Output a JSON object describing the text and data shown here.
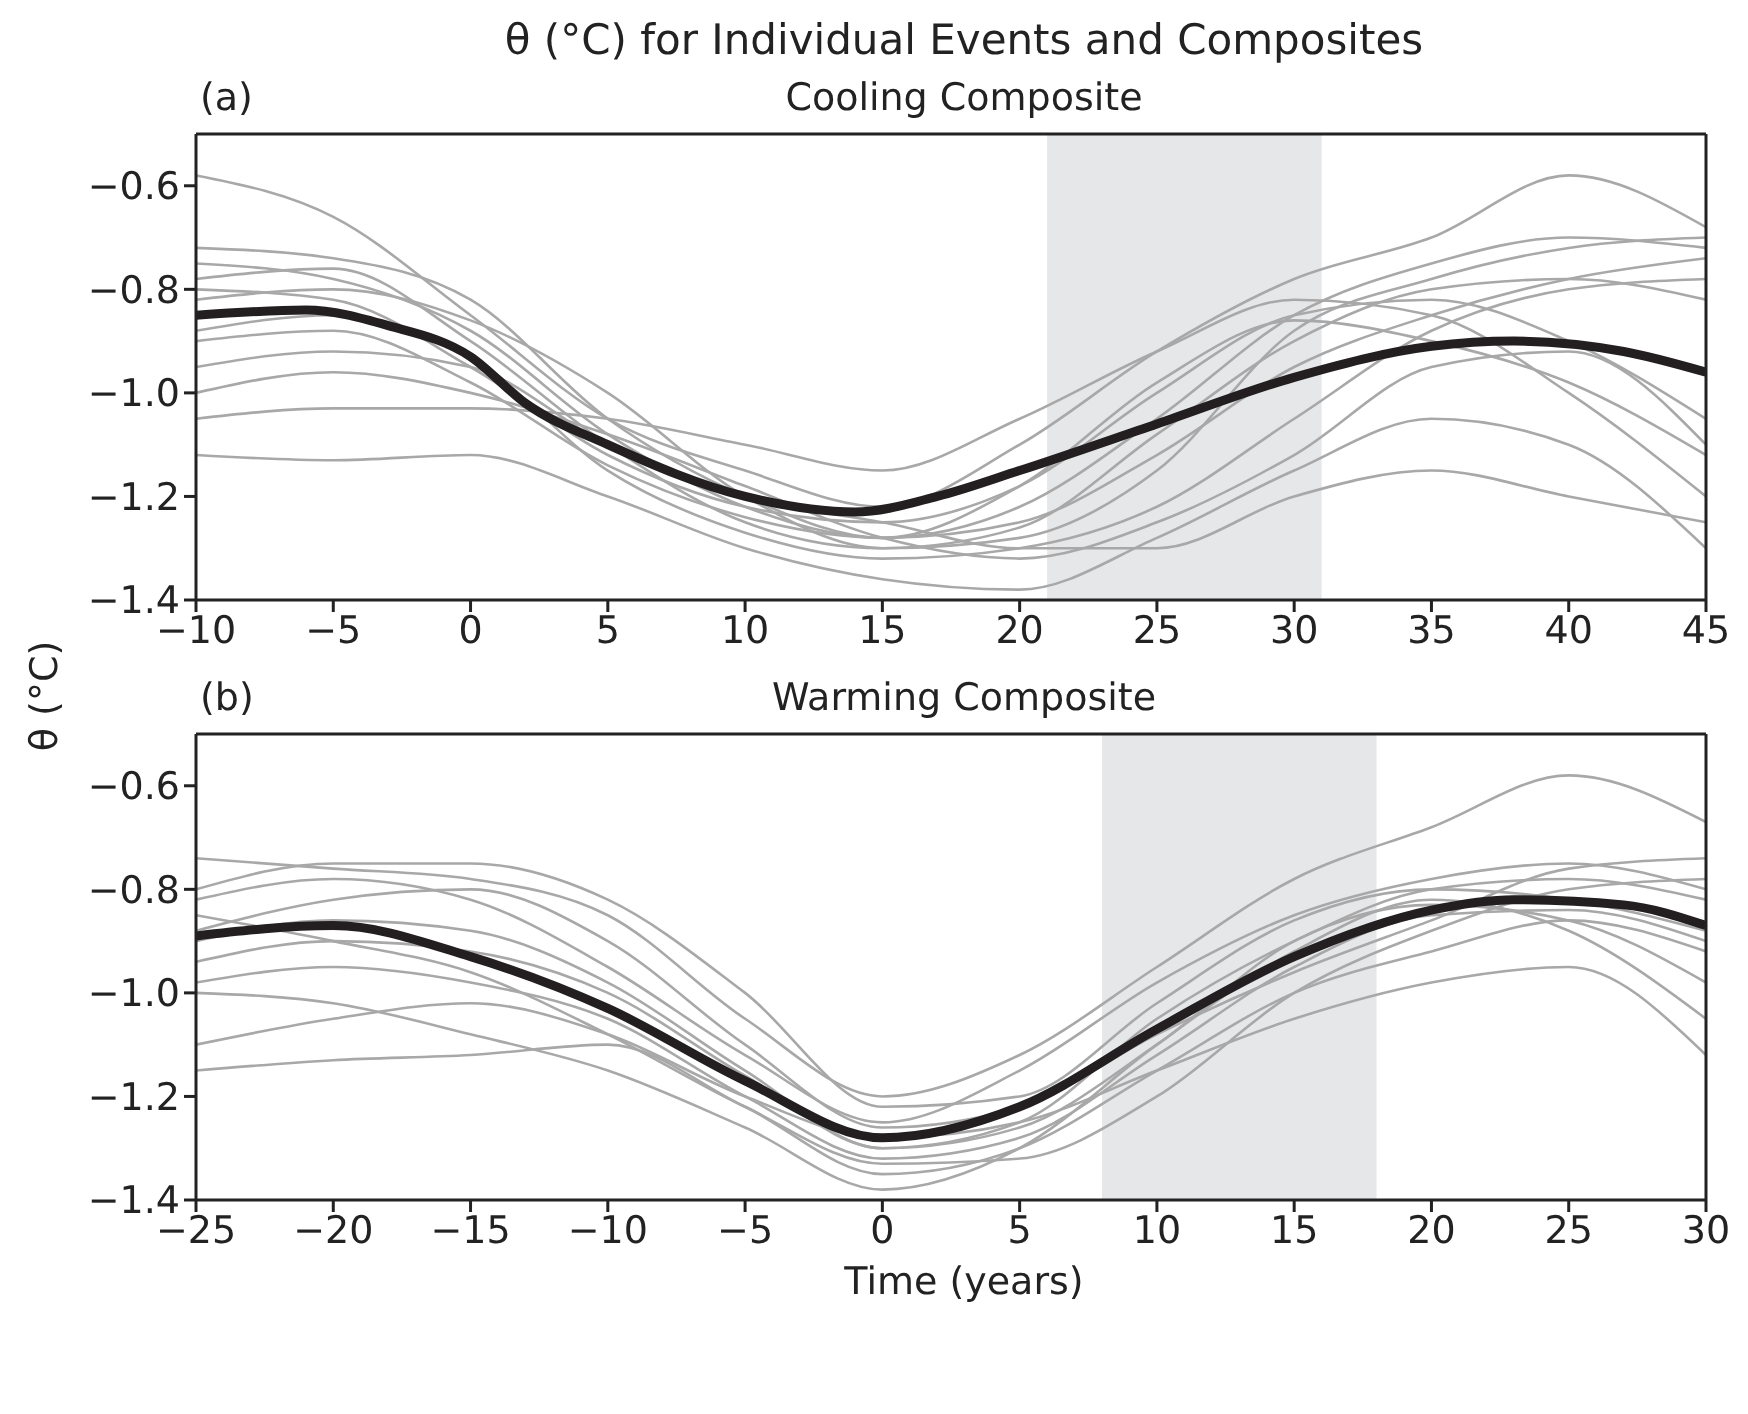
{
  "chart_data": [
    {
      "type": "line",
      "title": "θ (°C) for Individual Events and Composites",
      "subtitle": "Cooling Composite",
      "ylabel": "θ (°C)",
      "annotations": [
        "(a)"
      ],
      "xlim": [
        -10,
        45
      ],
      "xticks": [
        -10,
        -5,
        0,
        5,
        10,
        15,
        20,
        25,
        30,
        35,
        40,
        45
      ],
      "ylim": [
        -1.4,
        -0.5
      ],
      "yticks": [
        {
          "value": -1.4,
          "label": "−1.4"
        },
        {
          "value": -1.2,
          "label": "−1.2"
        },
        {
          "value": -1.0,
          "label": "−1.0"
        },
        {
          "value": -0.8,
          "label": "−0.8"
        },
        {
          "value": -0.6,
          "label": "−0.6"
        }
      ],
      "bands": [
        {
          "axis": "x",
          "from": 21,
          "to": 31,
          "color": "#e6e7e9"
        }
      ],
      "series": [
        {
          "color": "#a8a8a8",
          "x": [
            -10,
            -5,
            0,
            5,
            10,
            15,
            20,
            25,
            30,
            35,
            40,
            45
          ],
          "values": [
            -0.58,
            -0.66,
            -0.85,
            -1.05,
            -1.15,
            -1.22,
            -1.1,
            -0.92,
            -0.78,
            -0.7,
            -0.58,
            -0.68
          ]
        },
        {
          "color": "#a8a8a8",
          "x": [
            -10,
            -5,
            0,
            5,
            10,
            15,
            20,
            25,
            30,
            35,
            40,
            45
          ],
          "values": [
            -0.72,
            -0.74,
            -0.82,
            -1.05,
            -1.2,
            -1.28,
            -1.25,
            -1.12,
            -0.95,
            -0.85,
            -0.78,
            -0.74
          ]
        },
        {
          "color": "#a8a8a8",
          "x": [
            -10,
            -5,
            0,
            5,
            10,
            15,
            20,
            25,
            30,
            35,
            40,
            45
          ],
          "values": [
            -0.78,
            -0.76,
            -0.9,
            -1.1,
            -1.25,
            -1.3,
            -1.28,
            -1.15,
            -0.88,
            -0.78,
            -0.72,
            -0.7
          ]
        },
        {
          "color": "#a8a8a8",
          "x": [
            -10,
            -5,
            0,
            5,
            10,
            15,
            20,
            25,
            30,
            35,
            40,
            45
          ],
          "values": [
            -0.8,
            -0.82,
            -0.95,
            -1.12,
            -1.22,
            -1.25,
            -1.18,
            -1.0,
            -0.85,
            -0.82,
            -0.9,
            -1.05
          ]
        },
        {
          "color": "#a8a8a8",
          "x": [
            -10,
            -5,
            0,
            5,
            10,
            15,
            20,
            25,
            30,
            35,
            40,
            45
          ],
          "values": [
            -0.88,
            -0.85,
            -0.93,
            -1.15,
            -1.27,
            -1.32,
            -1.3,
            -1.22,
            -1.05,
            -0.88,
            -0.8,
            -0.78
          ]
        },
        {
          "color": "#a8a8a8",
          "x": [
            -10,
            -5,
            0,
            5,
            10,
            15,
            20,
            25,
            30,
            35,
            40,
            45
          ],
          "values": [
            -1.0,
            -0.96,
            -1.0,
            -1.08,
            -1.18,
            -1.28,
            -1.32,
            -1.25,
            -1.12,
            -0.95,
            -0.92,
            -1.1
          ]
        },
        {
          "color": "#a8a8a8",
          "x": [
            -10,
            -5,
            0,
            5,
            10,
            15,
            20,
            25,
            30,
            35,
            40,
            45
          ],
          "values": [
            -1.12,
            -1.13,
            -1.12,
            -1.2,
            -1.3,
            -1.36,
            -1.38,
            -1.28,
            -1.15,
            -1.05,
            -1.1,
            -1.3
          ]
        },
        {
          "color": "#a8a8a8",
          "x": [
            -10,
            -5,
            0,
            5,
            10,
            15,
            20,
            25,
            30,
            35,
            40,
            45
          ],
          "values": [
            -1.05,
            -1.03,
            -1.03,
            -1.05,
            -1.1,
            -1.15,
            -1.05,
            -0.92,
            -0.82,
            -0.85,
            -1.0,
            -1.2
          ]
        },
        {
          "color": "#a8a8a8",
          "x": [
            -10,
            -5,
            0,
            5,
            10,
            15,
            20,
            25,
            30,
            35,
            40,
            45
          ],
          "values": [
            -0.75,
            -0.78,
            -0.88,
            -1.08,
            -1.22,
            -1.28,
            -1.22,
            -1.05,
            -0.85,
            -0.75,
            -0.7,
            -0.72
          ]
        },
        {
          "color": "#a8a8a8",
          "x": [
            -10,
            -5,
            0,
            5,
            10,
            15,
            20,
            25,
            30,
            35,
            40,
            45
          ],
          "values": [
            -0.95,
            -0.92,
            -0.95,
            -1.1,
            -1.2,
            -1.25,
            -1.3,
            -1.3,
            -1.2,
            -1.15,
            -1.2,
            -1.25
          ]
        },
        {
          "color": "#a8a8a8",
          "x": [
            -10,
            -5,
            0,
            5,
            10,
            15,
            20,
            25,
            30,
            35,
            40,
            45
          ],
          "values": [
            -0.82,
            -0.8,
            -0.86,
            -1.0,
            -1.2,
            -1.3,
            -1.26,
            -1.08,
            -0.9,
            -0.8,
            -0.78,
            -0.82
          ]
        },
        {
          "color": "#a8a8a8",
          "x": [
            -10,
            -5,
            0,
            5,
            10,
            15,
            20,
            25,
            30,
            35,
            40,
            45
          ],
          "values": [
            -0.9,
            -0.88,
            -0.98,
            -1.14,
            -1.24,
            -1.28,
            -1.18,
            -0.98,
            -0.86,
            -0.9,
            -0.98,
            -1.12
          ]
        },
        {
          "color": "#231f20",
          "x": [
            -10,
            -6,
            -3,
            0,
            2,
            5,
            10,
            14,
            17,
            20,
            25,
            30,
            35,
            38,
            42,
            45
          ],
          "values": [
            -0.85,
            -0.84,
            -0.87,
            -0.93,
            -1.02,
            -1.1,
            -1.2,
            -1.23,
            -1.2,
            -1.15,
            -1.06,
            -0.97,
            -0.91,
            -0.9,
            -0.92,
            -0.96
          ]
        }
      ]
    },
    {
      "type": "line",
      "title": "Warming Composite",
      "xlabel": "Time (years)",
      "annotations": [
        "(b)"
      ],
      "xlim": [
        -25,
        30
      ],
      "xticks": [
        -25,
        -20,
        -15,
        -10,
        -5,
        0,
        5,
        10,
        15,
        20,
        25,
        30
      ],
      "ylim": [
        -1.4,
        -0.5
      ],
      "yticks": [
        {
          "value": -1.4,
          "label": "−1.4"
        },
        {
          "value": -1.2,
          "label": "−1.2"
        },
        {
          "value": -1.0,
          "label": "−1.0"
        },
        {
          "value": -0.8,
          "label": "−0.8"
        },
        {
          "value": -0.6,
          "label": "−0.6"
        }
      ],
      "bands": [
        {
          "axis": "x",
          "from": 8,
          "to": 18,
          "color": "#e6e7e9"
        }
      ],
      "series": [
        {
          "color": "#a8a8a8",
          "x": [
            -25,
            -20,
            -15,
            -10,
            -5,
            0,
            5,
            10,
            15,
            20,
            25,
            30
          ],
          "values": [
            -0.74,
            -0.76,
            -0.78,
            -0.85,
            -1.05,
            -1.2,
            -1.12,
            -0.95,
            -0.78,
            -0.68,
            -0.58,
            -0.67
          ]
        },
        {
          "color": "#a8a8a8",
          "x": [
            -25,
            -20,
            -15,
            -10,
            -5,
            0,
            5,
            10,
            15,
            20,
            25,
            30
          ],
          "values": [
            -0.82,
            -0.78,
            -0.82,
            -0.95,
            -1.12,
            -1.25,
            -1.15,
            -0.98,
            -0.85,
            -0.78,
            -0.75,
            -0.8
          ]
        },
        {
          "color": "#a8a8a8",
          "x": [
            -25,
            -20,
            -15,
            -10,
            -5,
            0,
            5,
            10,
            15,
            20,
            25,
            30
          ],
          "values": [
            -0.9,
            -0.86,
            -0.88,
            -0.98,
            -1.15,
            -1.3,
            -1.25,
            -1.05,
            -0.9,
            -0.8,
            -0.78,
            -0.82
          ]
        },
        {
          "color": "#a8a8a8",
          "x": [
            -25,
            -20,
            -15,
            -10,
            -5,
            0,
            5,
            10,
            15,
            20,
            25,
            30
          ],
          "values": [
            -0.98,
            -0.95,
            -0.98,
            -1.05,
            -1.2,
            -1.32,
            -1.28,
            -1.12,
            -0.95,
            -0.85,
            -0.84,
            -0.9
          ]
        },
        {
          "color": "#a8a8a8",
          "x": [
            -25,
            -20,
            -15,
            -10,
            -5,
            0,
            5,
            10,
            15,
            20,
            25,
            30
          ],
          "values": [
            -1.15,
            -1.13,
            -1.12,
            -1.1,
            -1.22,
            -1.35,
            -1.3,
            -1.15,
            -1.0,
            -0.92,
            -0.86,
            -0.92
          ]
        },
        {
          "color": "#a8a8a8",
          "x": [
            -25,
            -20,
            -15,
            -10,
            -5,
            0,
            5,
            10,
            15,
            20,
            25,
            30
          ],
          "values": [
            -1.1,
            -1.05,
            -1.02,
            -1.08,
            -1.2,
            -1.28,
            -1.25,
            -1.15,
            -1.05,
            -0.98,
            -0.95,
            -1.12
          ]
        },
        {
          "color": "#a8a8a8",
          "x": [
            -25,
            -20,
            -15,
            -10,
            -5,
            0,
            5,
            10,
            15,
            20,
            25,
            30
          ],
          "values": [
            -0.8,
            -0.75,
            -0.75,
            -0.82,
            -1.0,
            -1.22,
            -1.2,
            -1.02,
            -0.86,
            -0.8,
            -0.82,
            -0.88
          ]
        },
        {
          "color": "#a8a8a8",
          "x": [
            -25,
            -20,
            -15,
            -10,
            -5,
            0,
            5,
            10,
            15,
            20,
            25,
            30
          ],
          "values": [
            -0.85,
            -0.9,
            -0.96,
            -1.08,
            -1.22,
            -1.33,
            -1.32,
            -1.2,
            -1.0,
            -0.88,
            -0.8,
            -0.78
          ]
        },
        {
          "color": "#a8a8a8",
          "x": [
            -25,
            -20,
            -15,
            -10,
            -5,
            0,
            5,
            10,
            15,
            20,
            25,
            30
          ],
          "values": [
            -1.0,
            -1.02,
            -1.08,
            -1.15,
            -1.26,
            -1.38,
            -1.3,
            -1.1,
            -0.92,
            -0.82,
            -0.88,
            -1.05
          ]
        },
        {
          "color": "#a8a8a8",
          "x": [
            -25,
            -20,
            -15,
            -10,
            -5,
            0,
            5,
            10,
            15,
            20,
            25,
            30
          ],
          "values": [
            -0.88,
            -0.82,
            -0.8,
            -0.9,
            -1.1,
            -1.26,
            -1.22,
            -1.08,
            -0.96,
            -0.86,
            -0.76,
            -0.74
          ]
        },
        {
          "color": "#a8a8a8",
          "x": [
            -25,
            -20,
            -15,
            -10,
            -5,
            0,
            5,
            10,
            15,
            20,
            25,
            30
          ],
          "values": [
            -0.94,
            -0.9,
            -0.92,
            -1.0,
            -1.16,
            -1.3,
            -1.26,
            -1.1,
            -0.9,
            -0.83,
            -0.86,
            -0.98
          ]
        },
        {
          "color": "#231f20",
          "x": [
            -25,
            -20,
            -15,
            -10,
            -5,
            0,
            5,
            10,
            15,
            20,
            23,
            27,
            30
          ],
          "values": [
            -0.89,
            -0.87,
            -0.93,
            -1.03,
            -1.17,
            -1.28,
            -1.22,
            -1.07,
            -0.93,
            -0.84,
            -0.82,
            -0.83,
            -0.87
          ]
        }
      ]
    }
  ]
}
